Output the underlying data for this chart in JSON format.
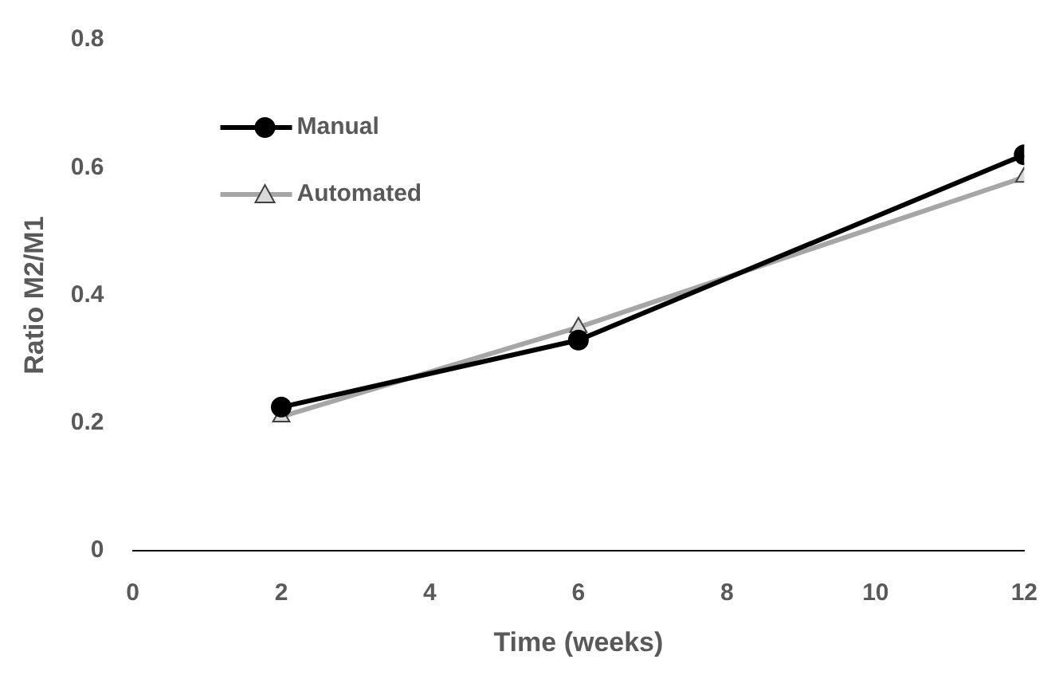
{
  "chart_data": {
    "type": "line",
    "xlabel": "Time (weeks)",
    "ylabel": "Ratio M2/M1",
    "x": [
      2,
      6,
      12
    ],
    "series": [
      {
        "name": "Manual",
        "color": "#000000",
        "values": [
          0.225,
          0.33,
          0.62
        ],
        "marker": "circle"
      },
      {
        "name": "Automated",
        "color": "#a6a6a6",
        "values": [
          0.21,
          0.35,
          0.585
        ],
        "marker": "triangle"
      }
    ],
    "xlim": [
      0,
      12
    ],
    "xticks": [
      0,
      2,
      4,
      6,
      8,
      10,
      12
    ],
    "ylim": [
      0,
      0.8
    ],
    "yticks": [
      0,
      0.2,
      0.4,
      0.6,
      0.8
    ],
    "grid": false,
    "legend": "top left"
  }
}
